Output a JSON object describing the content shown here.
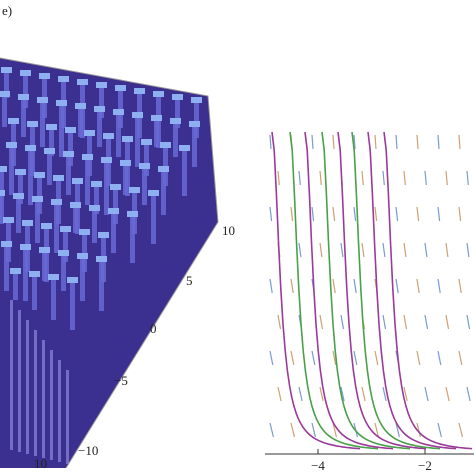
{
  "panel_label": "e)",
  "surface_plot": {
    "axis_labels": [
      "10",
      "5",
      "0",
      "−5",
      "−10"
    ],
    "corner_label": "10"
  },
  "line_plot": {
    "x_tick_labels": [
      "−4",
      "−2"
    ]
  }
}
